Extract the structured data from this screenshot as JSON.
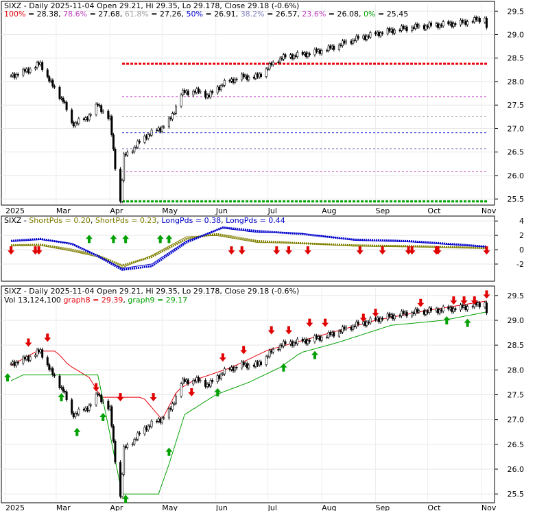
{
  "panel1": {
    "title": "SIXZ - Daily 2025-11-04 Open 29.21, Hi 29.35, Lo 29.178, Close 29.18 (-0.6%)",
    "fib_levels": [
      {
        "label": "100%",
        "value": 28.38,
        "value_text": "28.38",
        "color": "#e8000b"
      },
      {
        "label": "78.6%",
        "value": 27.68,
        "value_text": "27.68",
        "color": "#c040c0"
      },
      {
        "label": "61.8%",
        "value": 27.26,
        "value_text": "27.26",
        "color": "#a0a0a0"
      },
      {
        "label": "50%",
        "value": 26.91,
        "value_text": "26.91",
        "color": "#0000cc"
      },
      {
        "label": "38.2%",
        "value": 26.57,
        "value_text": "26.57",
        "color": "#8080c0"
      },
      {
        "label": "23.6%",
        "value": 26.08,
        "value_text": "26.08",
        "color": "#c040c0"
      },
      {
        "label": "0%",
        "value": 25.45,
        "value_text": "25.45",
        "color": "#00a000"
      }
    ],
    "y_ticks": [
      "29.5",
      "29.0",
      "28.5",
      "28.0",
      "27.5",
      "27.0",
      "26.5",
      "26.0",
      "25.5"
    ],
    "y_tick_values": [
      29.5,
      29.0,
      28.5,
      28.0,
      27.5,
      27.0,
      26.5,
      26.0,
      25.5
    ],
    "ylim": [
      25.4,
      29.65
    ]
  },
  "panel2": {
    "title_prefix": "SIXZ - ",
    "legend": [
      {
        "text": "ShortPds = 0.20",
        "color": "#808000"
      },
      {
        "text": "ShortPds = 0.23",
        "color": "#808000"
      },
      {
        "text": "LongPds = 0.38",
        "color": "#0000cc"
      },
      {
        "text": "LongPds = 0.44",
        "color": "#0000cc"
      }
    ],
    "y_ticks": [
      "4",
      "2",
      "0",
      "-2"
    ],
    "y_tick_values": [
      4,
      2,
      0,
      -2
    ],
    "ylim": [
      -4.2,
      4.4
    ]
  },
  "panel3": {
    "title": "SIXZ - Daily 2025-11-04 Open 29.21, Hi 29.35, Lo 29.178, Close 29.18 (-0.6%)",
    "vol_text": "Vol 13,124,100",
    "graph8": {
      "text": "graph8 = 29.39",
      "color": "#e8000b"
    },
    "graph9": {
      "text": "graph9 = 29.17",
      "color": "#00a000"
    },
    "y_ticks": [
      "29.5",
      "29.0",
      "28.5",
      "28.0",
      "27.5",
      "27.0",
      "26.5",
      "26.0",
      "25.5"
    ],
    "y_tick_values": [
      29.5,
      29.0,
      28.5,
      28.0,
      27.5,
      27.0,
      26.5,
      26.0,
      25.5
    ],
    "ylim": [
      25.35,
      29.65
    ]
  },
  "x_axis_labels": [
    "2025",
    "Mar",
    "Apr",
    "May",
    "Jun",
    "Jul",
    "Aug",
    "Sep",
    "Oct",
    "Nov"
  ],
  "chart_data": [
    {
      "type": "candlestick",
      "title": "SIXZ - Daily 2025-11-04 Open 29.21, Hi 29.35, Lo 29.178, Close 29.18 (-0.6%)",
      "x_labels": [
        "2025",
        "Mar",
        "Apr",
        "May",
        "Jun",
        "Jul",
        "Aug",
        "Sep",
        "Oct",
        "Nov"
      ],
      "anchors": [
        [
          "2025-02-01",
          28.1
        ],
        [
          "2025-02-10",
          28.2
        ],
        [
          "2025-02-20",
          28.38
        ],
        [
          "2025-02-27",
          27.9
        ],
        [
          "2025-03-05",
          27.6
        ],
        [
          "2025-03-10",
          27.1
        ],
        [
          "2025-03-18",
          27.2
        ],
        [
          "2025-03-25",
          27.5
        ],
        [
          "2025-04-01",
          27.2
        ],
        [
          "2025-04-04",
          26.2
        ],
        [
          "2025-04-07",
          25.45
        ],
        [
          "2025-04-09",
          26.4
        ],
        [
          "2025-04-15",
          26.6
        ],
        [
          "2025-04-22",
          26.85
        ],
        [
          "2025-04-30",
          27.0
        ],
        [
          "2025-05-06",
          27.2
        ],
        [
          "2025-05-12",
          27.75
        ],
        [
          "2025-05-20",
          27.8
        ],
        [
          "2025-05-28",
          27.7
        ],
        [
          "2025-06-05",
          27.95
        ],
        [
          "2025-06-15",
          28.1
        ],
        [
          "2025-06-25",
          28.1
        ],
        [
          "2025-07-01",
          28.3
        ],
        [
          "2025-07-08",
          28.5
        ],
        [
          "2025-07-15",
          28.55
        ],
        [
          "2025-07-25",
          28.6
        ],
        [
          "2025-08-05",
          28.7
        ],
        [
          "2025-08-20",
          28.9
        ],
        [
          "2025-09-05",
          29.05
        ],
        [
          "2025-09-20",
          29.15
        ],
        [
          "2025-10-05",
          29.2
        ],
        [
          "2025-10-20",
          29.25
        ],
        [
          "2025-11-03",
          29.35
        ],
        [
          "2025-11-04",
          29.18
        ]
      ]
    },
    {
      "type": "line",
      "title": "SIXZ - ShortPds = 0.20, ShortPds = 0.23, LongPds = 0.38, LongPds = 0.44",
      "series": [
        {
          "name": "ShortPds = 0.20",
          "anchors": [
            [
              "2025-02-01",
              0.5
            ],
            [
              "2025-02-20",
              0.6
            ],
            [
              "2025-03-10",
              -0.2
            ],
            [
              "2025-03-25",
              -1.0
            ],
            [
              "2025-04-08",
              -2.5
            ],
            [
              "2025-04-25",
              -0.8
            ],
            [
              "2025-05-15",
              1.8
            ],
            [
              "2025-06-01",
              2.0
            ],
            [
              "2025-06-25",
              1.0
            ],
            [
              "2025-07-20",
              0.9
            ],
            [
              "2025-08-20",
              0.5
            ],
            [
              "2025-09-20",
              0.4
            ],
            [
              "2025-11-04",
              0.2
            ]
          ]
        },
        {
          "name": "ShortPds = 0.23",
          "anchors": [
            [
              "2025-02-01",
              0.6
            ],
            [
              "2025-02-20",
              0.7
            ],
            [
              "2025-03-10",
              0.0
            ],
            [
              "2025-03-25",
              -0.8
            ],
            [
              "2025-04-08",
              -2.2
            ],
            [
              "2025-04-25",
              -1.0
            ],
            [
              "2025-05-15",
              1.5
            ],
            [
              "2025-06-01",
              2.2
            ],
            [
              "2025-06-25",
              1.2
            ],
            [
              "2025-07-20",
              0.9
            ],
            [
              "2025-08-20",
              0.6
            ],
            [
              "2025-09-20",
              0.5
            ],
            [
              "2025-11-04",
              0.23
            ]
          ]
        },
        {
          "name": "LongPds = 0.38",
          "anchors": [
            [
              "2025-02-01",
              1.1
            ],
            [
              "2025-02-20",
              1.4
            ],
            [
              "2025-03-10",
              0.9
            ],
            [
              "2025-03-25",
              -0.8
            ],
            [
              "2025-04-08",
              -2.6
            ],
            [
              "2025-04-25",
              -2.0
            ],
            [
              "2025-05-15",
              1.2
            ],
            [
              "2025-06-05",
              3.0
            ],
            [
              "2025-06-25",
              2.4
            ],
            [
              "2025-07-20",
              2.3
            ],
            [
              "2025-08-20",
              1.3
            ],
            [
              "2025-09-20",
              1.1
            ],
            [
              "2025-11-04",
              0.38
            ]
          ]
        },
        {
          "name": "LongPds = 0.44",
          "anchors": [
            [
              "2025-02-01",
              1.2
            ],
            [
              "2025-02-20",
              1.5
            ],
            [
              "2025-03-10",
              0.8
            ],
            [
              "2025-03-25",
              -0.9
            ],
            [
              "2025-04-08",
              -2.8
            ],
            [
              "2025-04-25",
              -2.3
            ],
            [
              "2025-05-15",
              1.0
            ],
            [
              "2025-06-05",
              3.1
            ],
            [
              "2025-06-25",
              2.6
            ],
            [
              "2025-07-20",
              2.2
            ],
            [
              "2025-08-20",
              1.4
            ],
            [
              "2025-09-20",
              1.2
            ],
            [
              "2025-11-04",
              0.44
            ]
          ]
        }
      ]
    },
    {
      "type": "candlestick",
      "title": "SIXZ - Daily 2025-11-04 Open 29.21, Hi 29.35, Lo 29.178, Close 29.18 (-0.6%)",
      "graph8_anchors": [
        [
          "2025-02-01",
          28.05
        ],
        [
          "2025-02-18",
          28.38
        ],
        [
          "2025-03-01",
          28.38
        ],
        [
          "2025-03-08",
          28.1
        ],
        [
          "2025-03-20",
          27.85
        ],
        [
          "2025-03-27",
          27.45
        ],
        [
          "2025-04-20",
          27.45
        ],
        [
          "2025-05-01",
          27.0
        ],
        [
          "2025-05-10",
          27.6
        ],
        [
          "2025-05-20",
          27.8
        ],
        [
          "2025-06-10",
          28.05
        ],
        [
          "2025-07-01",
          28.4
        ],
        [
          "2025-08-01",
          28.7
        ],
        [
          "2025-09-01",
          29.0
        ],
        [
          "2025-10-01",
          29.2
        ],
        [
          "2025-11-04",
          29.39
        ]
      ],
      "graph9_anchors": [
        [
          "2025-02-01",
          27.75
        ],
        [
          "2025-02-10",
          27.9
        ],
        [
          "2025-03-25",
          27.9
        ],
        [
          "2025-04-08",
          25.5
        ],
        [
          "2025-04-29",
          25.5
        ],
        [
          "2025-05-05",
          26.1
        ],
        [
          "2025-05-14",
          27.1
        ],
        [
          "2025-06-01",
          27.5
        ],
        [
          "2025-06-20",
          27.75
        ],
        [
          "2025-07-08",
          28.05
        ],
        [
          "2025-07-20",
          28.35
        ],
        [
          "2025-08-10",
          28.55
        ],
        [
          "2025-09-10",
          28.9
        ],
        [
          "2025-10-10",
          29.0
        ],
        [
          "2025-11-04",
          29.17
        ]
      ]
    }
  ]
}
